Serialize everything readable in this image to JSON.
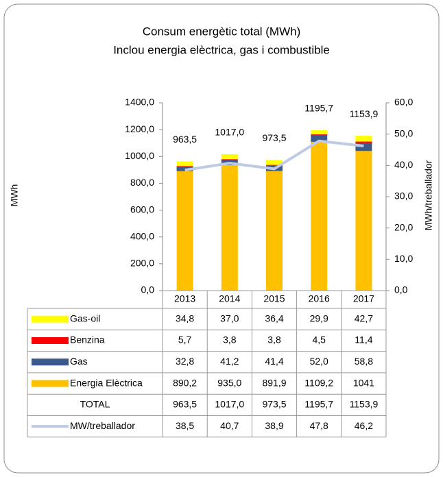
{
  "chart_data": {
    "type": "bar",
    "title": "Consum energètic total (MWh)",
    "subtitle": "Inclou energia elèctrica, gas i combustible",
    "ylabel": "MWh",
    "y2label": "MWh/treballador",
    "categories": [
      "2013",
      "2014",
      "2015",
      "2016",
      "2017"
    ],
    "series": [
      {
        "name": "Gas-oil",
        "color": "#ffff00",
        "values": [
          34.8,
          37.0,
          36.4,
          29.9,
          42.7
        ],
        "value_labels": [
          "34,8",
          "37,0",
          "36,4",
          "29,9",
          "42,7"
        ]
      },
      {
        "name": "Benzina",
        "color": "#ff0000",
        "values": [
          5.7,
          3.8,
          3.8,
          4.5,
          11.4
        ],
        "value_labels": [
          "5,7",
          "3,8",
          "3,8",
          "4,5",
          "11,4"
        ]
      },
      {
        "name": "Gas",
        "color": "#3b5a8c",
        "values": [
          32.8,
          41.2,
          41.4,
          52.0,
          58.8
        ],
        "value_labels": [
          "32,8",
          "41,2",
          "41,4",
          "52,0",
          "58,8"
        ]
      },
      {
        "name": "Energia Elèctrica",
        "color": "#ffc000",
        "values": [
          890.2,
          935.0,
          891.9,
          1109.2,
          1041
        ],
        "value_labels": [
          "890,2",
          "935,0",
          "891,9",
          "1109,2",
          "1041"
        ]
      }
    ],
    "totals": {
      "name": "TOTAL",
      "values": [
        963.5,
        1017.0,
        973.5,
        1195.7,
        1153.9
      ],
      "value_labels": [
        "963,5",
        "1017,0",
        "973,5",
        "1195,7",
        "1153,9"
      ]
    },
    "line_series": {
      "name": "MW/treballador",
      "type": "line",
      "axis": "y2",
      "color": "#bfcbe2",
      "values": [
        38.5,
        40.7,
        38.9,
        47.8,
        46.2
      ],
      "value_labels": [
        "38,5",
        "40,7",
        "38,9",
        "47,8",
        "46,2"
      ]
    },
    "ylim": [
      0,
      1400
    ],
    "yticks": [
      {
        "value": 0,
        "label": "0,0"
      },
      {
        "value": 200,
        "label": "200,0"
      },
      {
        "value": 400,
        "label": "400,0"
      },
      {
        "value": 600,
        "label": "600,0"
      },
      {
        "value": 800,
        "label": "800,0"
      },
      {
        "value": 1000,
        "label": "1000,0"
      },
      {
        "value": 1200,
        "label": "1200,0"
      },
      {
        "value": 1400,
        "label": "1400,0"
      }
    ],
    "y2lim": [
      0,
      60
    ],
    "y2ticks": [
      {
        "value": 0,
        "label": "0,0"
      },
      {
        "value": 10,
        "label": "10,0"
      },
      {
        "value": 20,
        "label": "20,0"
      },
      {
        "value": 30,
        "label": "30,0"
      },
      {
        "value": 40,
        "label": "40,0"
      },
      {
        "value": 50,
        "label": "50,0"
      },
      {
        "value": 60,
        "label": "60,0"
      }
    ],
    "grid": false
  }
}
